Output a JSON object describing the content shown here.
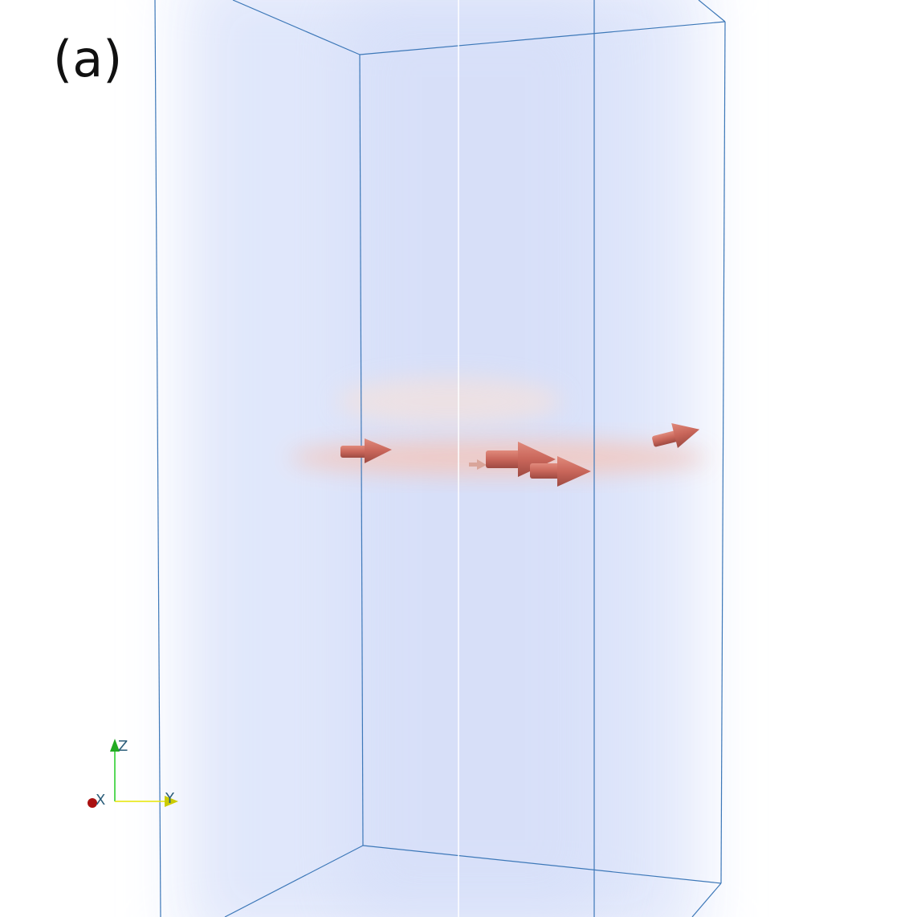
{
  "panel_label": "(a)",
  "axes": {
    "z": "Z",
    "x": "X",
    "y": "Y"
  }
}
